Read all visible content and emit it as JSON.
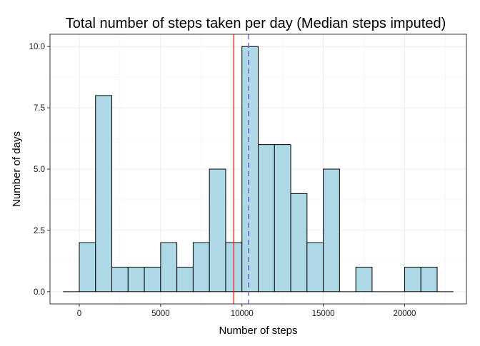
{
  "chart_data": {
    "type": "bar",
    "title": "Total number of steps taken per day (Median steps imputed)",
    "xlabel": "Number of steps",
    "ylabel": "Number of days",
    "xlim": [
      -1800,
      23800
    ],
    "ylim": [
      -0.5,
      10.5
    ],
    "x_ticks": [
      0,
      5000,
      10000,
      15000,
      20000
    ],
    "x_tick_labels": [
      "0",
      "5000",
      "10000",
      "15000",
      "20000"
    ],
    "y_ticks": [
      0,
      2.5,
      5,
      7.5,
      10
    ],
    "y_tick_labels": [
      "0.0",
      "2.5",
      "5.0",
      "7.5",
      "10.0"
    ],
    "bin_width": 1000,
    "bin_starts": [
      -1000,
      0,
      1000,
      2000,
      3000,
      4000,
      5000,
      6000,
      7000,
      8000,
      9000,
      10000,
      11000,
      12000,
      13000,
      14000,
      15000,
      16000,
      17000,
      18000,
      19000,
      20000,
      21000,
      22000
    ],
    "values": [
      0,
      2,
      8,
      1,
      1,
      1,
      2,
      1,
      2,
      5,
      2,
      10,
      6,
      6,
      4,
      2,
      5,
      0,
      1,
      0,
      0,
      1,
      1,
      0
    ],
    "bar_fill": "#add8e6",
    "bar_outline": "#000000",
    "mean_line": {
      "x": 9500,
      "color": "#ff0000",
      "style": "solid"
    },
    "median_line": {
      "x": 10400,
      "color": "#7b3fe4",
      "style": "dashed"
    },
    "grid": true,
    "legend": "none"
  }
}
